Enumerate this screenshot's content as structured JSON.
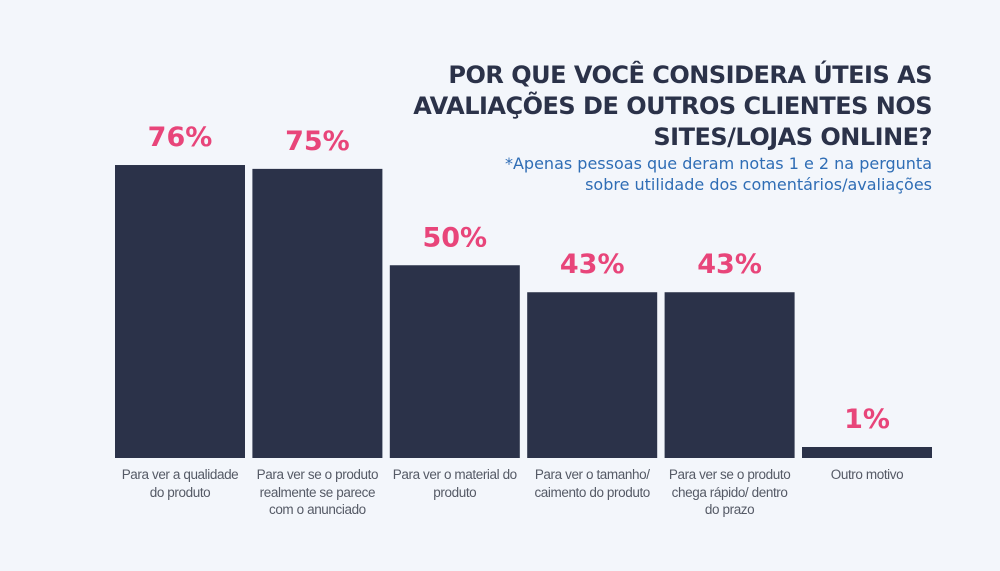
{
  "chart_data": {
    "type": "bar",
    "title": "POR QUE VOCÊ CONSIDERA ÚTEIS AS AVALIAÇÕES DE OUTROS CLIENTES NOS SITES/LOJAS ONLINE?",
    "subtitle": "*Apenas pessoas que deram notas 1 e 2 na pergunta sobre utilidade dos comentários/avaliações",
    "categories": [
      "Para ver a qualidade do produto",
      "Para ver se o produto realmente se parece com o anunciado",
      "Para ver o material do produto",
      "Para ver o tamanho/ caimento do produto",
      "Para ver se o produto chega rápido/ dentro do prazo",
      "Outro motivo"
    ],
    "values": [
      76,
      75,
      50,
      43,
      43,
      1
    ],
    "data_labels": [
      "76%",
      "75%",
      "50%",
      "43%",
      "43%",
      "1%"
    ],
    "unit": "%",
    "ylim": [
      0,
      100
    ],
    "grid": false,
    "colors": {
      "bar": "#2b3249",
      "data_label": "#e8457a",
      "title": "#2b3249",
      "subtitle": "#2f6db5",
      "background": "#f3f6fb"
    }
  }
}
